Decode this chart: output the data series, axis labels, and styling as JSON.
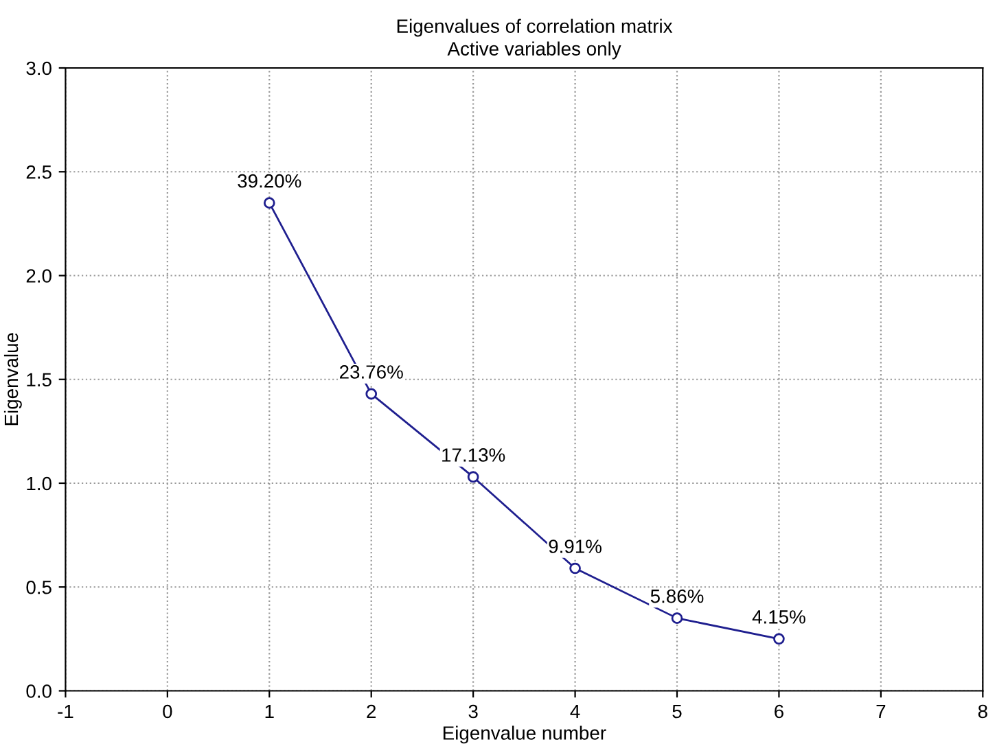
{
  "chart_data": {
    "type": "line",
    "title": "Eigenvalues of correlation matrix",
    "subtitle": "Active variables only",
    "xlabel": "Eigenvalue number",
    "ylabel": "Eigenvalue",
    "x": [
      1,
      2,
      3,
      4,
      5,
      6
    ],
    "series": [
      {
        "color": "#1f1f8f",
        "values": [
          2.35,
          1.43,
          1.03,
          0.59,
          0.35,
          0.25
        ]
      }
    ],
    "annotations": [
      {
        "text": "39.20%",
        "x": 1,
        "y": 2.35
      },
      {
        "text": "23.76%",
        "x": 2,
        "y": 1.43
      },
      {
        "text": "17.13%",
        "x": 3,
        "y": 1.03
      },
      {
        "text": "9.91%",
        "x": 4,
        "y": 0.59
      },
      {
        "text": "5.86%",
        "x": 5,
        "y": 0.35
      },
      {
        "text": "4.15%",
        "x": 6,
        "y": 0.25
      }
    ],
    "xlim": [
      -1,
      8
    ],
    "xticks": [
      -1,
      0,
      1,
      2,
      3,
      4,
      5,
      6,
      7,
      8
    ],
    "ylim": [
      0,
      3
    ],
    "yticks": [
      {
        "value": 0,
        "label": "0.0"
      },
      0.5,
      {
        "value": 1,
        "label": "1.0"
      },
      1.5,
      {
        "value": 2,
        "label": "2.0"
      },
      2.5,
      {
        "value": 3,
        "label": "3.0"
      }
    ],
    "grid": true,
    "marker": "circle",
    "line_style": "solid"
  }
}
